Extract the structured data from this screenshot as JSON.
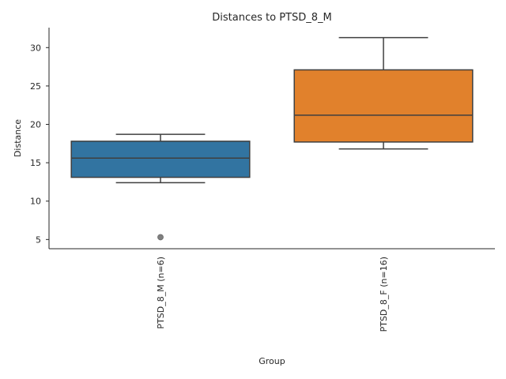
{
  "chart_data": {
    "type": "box",
    "title": "Distances to PTSD_8_M",
    "xlabel": "Group",
    "ylabel": "Distance",
    "ylim": [
      3.8,
      32.6
    ],
    "y_ticks": [
      5,
      10,
      15,
      20,
      25,
      30
    ],
    "grid": false,
    "categories": [
      "PTSD_8_M (n=6)",
      "PTSD_8_F (n=16)"
    ],
    "boxes": [
      {
        "name": "PTSD_8_M (n=6)",
        "whisker_low": 12.4,
        "q1": 13.1,
        "median": 15.6,
        "q3": 17.8,
        "whisker_high": 18.7,
        "outliers": [
          5.3
        ],
        "color": "#3274a1"
      },
      {
        "name": "PTSD_8_F (n=16)",
        "whisker_low": 16.8,
        "q1": 17.7,
        "median": 21.2,
        "q3": 27.1,
        "whisker_high": 31.3,
        "outliers": [],
        "color": "#e1812c"
      }
    ]
  }
}
